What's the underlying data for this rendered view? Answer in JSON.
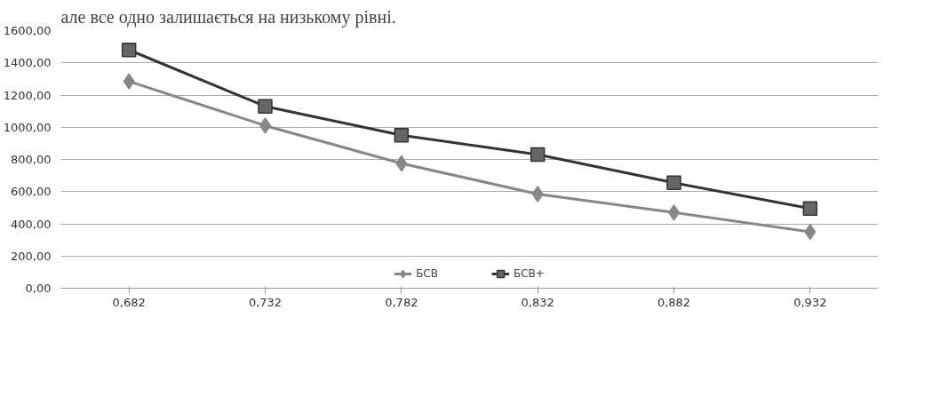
{
  "chart_data": {
    "type": "line",
    "annotations": [
      "але все одно залишається на низькому рівні."
    ],
    "categories": [
      "0,682",
      "0,732",
      "0,782",
      "0,832",
      "0,882",
      "0,932"
    ],
    "series": [
      {
        "name": "БСВ",
        "color": "#878787",
        "marker": "diamond",
        "values": [
          1285,
          1010,
          775,
          585,
          470,
          350
        ]
      },
      {
        "name": "БСВ+",
        "color": "#333333",
        "marker": "square",
        "values": [
          1480,
          1130,
          950,
          830,
          655,
          495
        ]
      }
    ],
    "ylim": [
      0,
      1600
    ],
    "yticks": [
      {
        "value": 0,
        "label": "0,00"
      },
      {
        "value": 200,
        "label": "200,00"
      },
      {
        "value": 400,
        "label": "400,00"
      },
      {
        "value": 600,
        "label": "600,00"
      },
      {
        "value": 800,
        "label": "800,00"
      },
      {
        "value": 1000,
        "label": "1000,00"
      },
      {
        "value": 1200,
        "label": "1200,00"
      },
      {
        "value": 1400,
        "label": "1400,00"
      },
      {
        "value": 1600,
        "label": "1600,00"
      }
    ],
    "grid": "y",
    "legend": "bottom",
    "line_style": "solid"
  }
}
